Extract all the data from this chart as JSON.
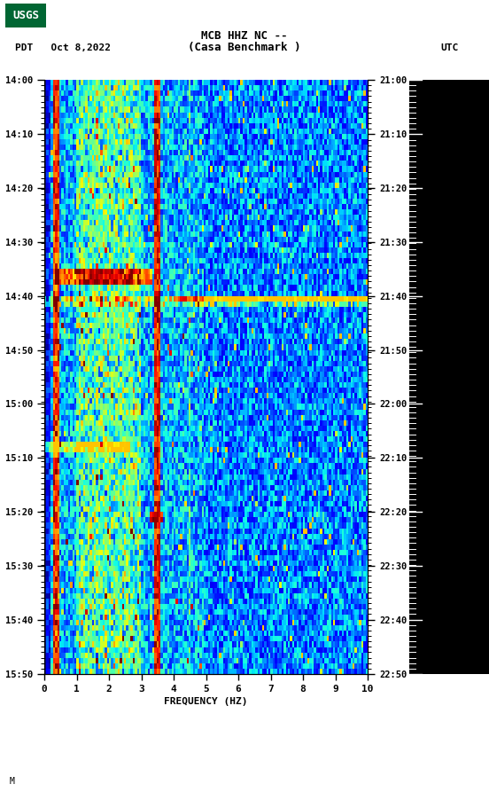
{
  "title_line1": "MCB HHZ NC --",
  "title_line2": "(Casa Benchmark )",
  "left_label": "PDT   Oct 8,2022",
  "right_label": "UTC",
  "xlabel": "FREQUENCY (HZ)",
  "freq_min": 0,
  "freq_max": 10,
  "left_ticks_pdt": [
    "14:00",
    "14:10",
    "14:20",
    "14:30",
    "14:40",
    "14:50",
    "15:00",
    "15:10",
    "15:20",
    "15:30",
    "15:40",
    "15:50"
  ],
  "right_ticks_utc": [
    "21:00",
    "21:10",
    "21:20",
    "21:30",
    "21:40",
    "21:50",
    "22:00",
    "22:10",
    "22:20",
    "22:30",
    "22:40",
    "22:50"
  ],
  "background_color": "#ffffff",
  "colormap": "jet",
  "fig_width": 5.52,
  "fig_height": 8.93,
  "seed": 42,
  "footnote": "M"
}
